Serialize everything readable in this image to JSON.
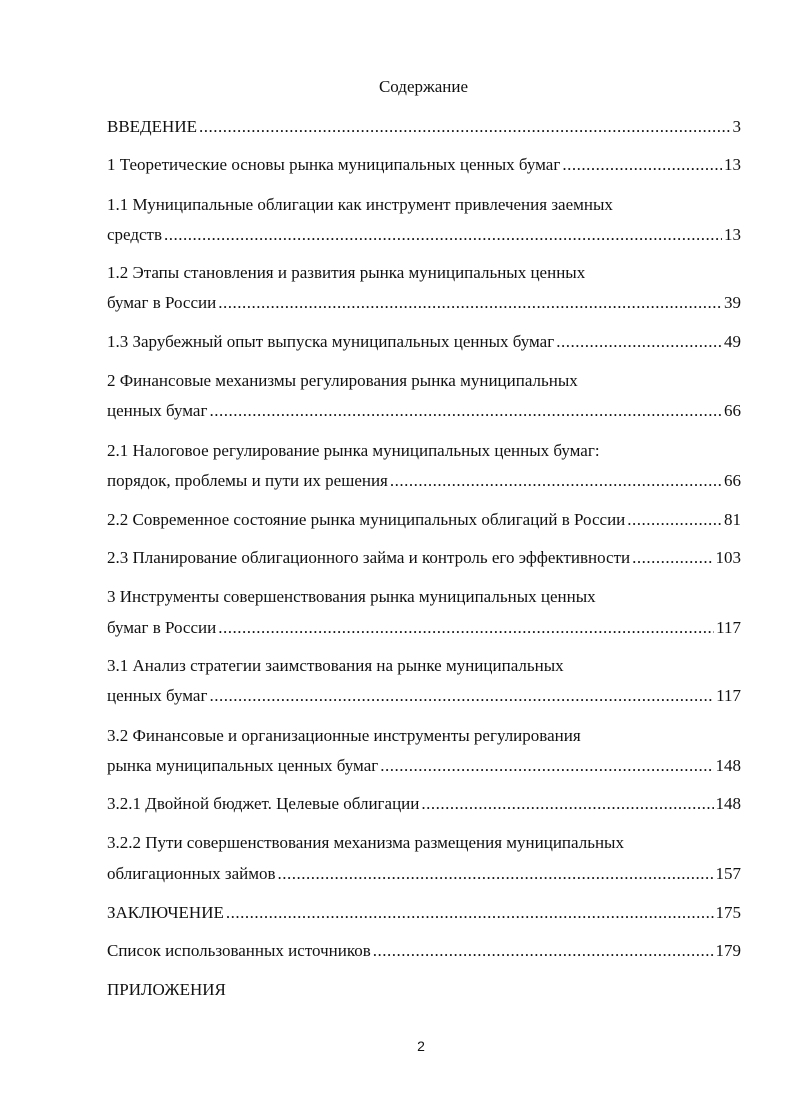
{
  "title": "Содержание",
  "entries": [
    {
      "lines": [
        "ВВЕДЕНИЕ"
      ],
      "page": "3"
    },
    {
      "lines": [
        "1 Теоретические основы рынка муниципальных ценных бумаг"
      ],
      "page": "13"
    },
    {
      "lines": [
        "1.1 Муниципальные облигации как инструмент привлечения заемных",
        "средств"
      ],
      "page": "13"
    },
    {
      "lines": [
        "1.2 Этапы становления и развития рынка муниципальных ценных",
        "бумаг в России"
      ],
      "page": "39"
    },
    {
      "lines": [
        "1.3 Зарубежный опыт выпуска муниципальных ценных бумаг"
      ],
      "page": "49"
    },
    {
      "lines": [
        "2 Финансовые механизмы регулирования рынка муниципальных",
        "ценных бумаг"
      ],
      "page": "66"
    },
    {
      "lines": [
        "2.1 Налоговое регулирование рынка муниципальных ценных бумаг:",
        "порядок, проблемы и пути их решения"
      ],
      "page": "66"
    },
    {
      "lines": [
        "2.2 Современное состояние рынка муниципальных облигаций в России"
      ],
      "page": "81"
    },
    {
      "lines": [
        "2.3 Планирование облигационного займа и контроль его эффективности"
      ],
      "page": "103"
    },
    {
      "lines": [
        "3 Инструменты совершенствования рынка муниципальных ценных",
        "бумаг в России"
      ],
      "page": "117"
    },
    {
      "lines": [
        "3.1 Анализ стратегии заимствования на рынке муниципальных",
        "ценных бумаг"
      ],
      "page": "117"
    },
    {
      "lines": [
        "3.2 Финансовые и организационные инструменты регулирования",
        "рынка муниципальных ценных бумаг"
      ],
      "page": "148"
    },
    {
      "lines": [
        "3.2.1 Двойной бюджет. Целевые облигации"
      ],
      "page": "148"
    },
    {
      "lines": [
        "3.2.2 Пути совершенствования механизма размещения муниципальных",
        "облигационных займов"
      ],
      "page": "157"
    },
    {
      "lines": [
        "ЗАКЛЮЧЕНИЕ"
      ],
      "page": "175"
    },
    {
      "lines": [
        "Список использованных источников"
      ],
      "page": "179"
    },
    {
      "lines": [
        "ПРИЛОЖЕНИЯ"
      ],
      "page": ""
    }
  ],
  "page_number": "2"
}
